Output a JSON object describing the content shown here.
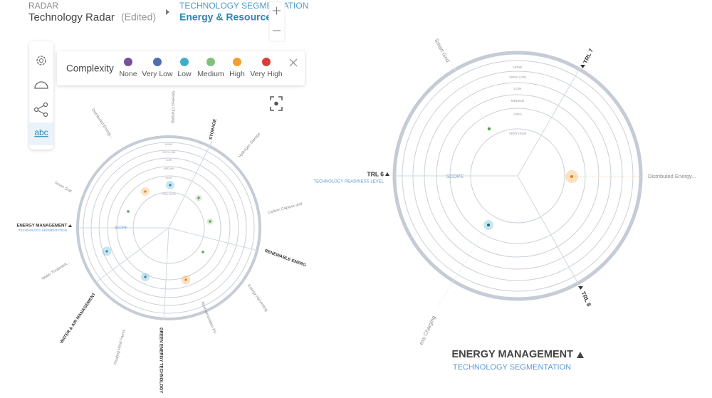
{
  "header": {
    "breadcrumb_root": "RADAR",
    "radar_name": "Technology Radar",
    "status": "(Edited)",
    "segment_label": "TECHNOLOGY SEGMENTATION",
    "segment_name": "Energy & Resources"
  },
  "sidebar": {
    "text_tool": "abc"
  },
  "legend": {
    "title": "Complexity",
    "items": [
      {
        "label": "None",
        "color": "#7a4f9a"
      },
      {
        "label": "Very Low",
        "color": "#4f6fae"
      },
      {
        "label": "Low",
        "color": "#3fb0c3"
      },
      {
        "label": "Medium",
        "color": "#80c07a"
      },
      {
        "label": "High",
        "color": "#f0a030"
      },
      {
        "label": "Very High",
        "color": "#dd3b3b"
      }
    ]
  },
  "ring_labels": [
    "NONE",
    "VERY LOW",
    "LOW",
    "MEDIUM",
    "HIGH",
    "VERY HIGH"
  ],
  "left_radar": {
    "center_label": "SCOPE",
    "segments": [
      "STORAGE",
      "RENEWABLE ENERG",
      "GREEN ENERGY TECHNOLOGY",
      "WATER & AIR MANAGEMENT",
      "ENERGY MANAGEMENT"
    ],
    "segment_caption": "TECHNOLOGY SEGMENTATION",
    "technologies": [
      "Wireless Charging",
      "Distributed Energy...",
      "Hydrogen Storage",
      "Carbon Capture and",
      "Energy Harvesting",
      "Next-generation PV",
      "Floating Wind Farms",
      "Water Treatment...",
      "Smart Grid"
    ]
  },
  "right_radar": {
    "center_label": "SCOPE",
    "axes": [
      "TRL 7",
      "TRL 6",
      "TRL 8"
    ],
    "axis_caption": "TECHNOLOGY READINESS LEVEL",
    "technologies": [
      "Smart Grid",
      "Distributed Energy...",
      "ess Charging"
    ],
    "footer": {
      "title": "ENERGY MANAGEMENT",
      "subtitle": "TECHNOLOGY SEGMENTATION"
    }
  }
}
